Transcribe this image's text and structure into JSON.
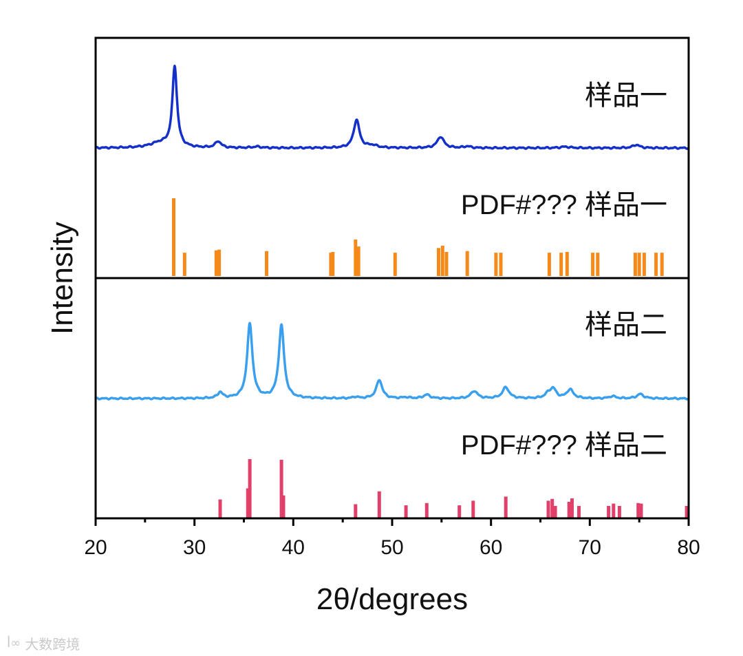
{
  "chart_data": {
    "type": "line",
    "xlabel": "2θ/degrees",
    "ylabel": "Intensity",
    "xlim": [
      20,
      80
    ],
    "x_ticks": [
      "20",
      "30",
      "40",
      "50",
      "60",
      "70",
      "80"
    ],
    "grid": false,
    "legend": "none",
    "panels": [
      {
        "name": "top",
        "traces": [
          {
            "kind": "line",
            "label": "样品一",
            "color": "#1530c8",
            "baseline": 0,
            "peaks": [
              {
                "x": 26.5,
                "h": 0.06,
                "w": 1.2
              },
              {
                "x": 28.0,
                "h": 1.0,
                "w": 0.28
              },
              {
                "x": 32.4,
                "h": 0.08,
                "w": 0.35
              },
              {
                "x": 36.3,
                "h": 0.015,
                "w": 0.5
              },
              {
                "x": 46.4,
                "h": 0.35,
                "w": 0.35
              },
              {
                "x": 48.0,
                "h": 0.03,
                "w": 0.6
              },
              {
                "x": 54.9,
                "h": 0.14,
                "w": 0.4
              },
              {
                "x": 57.6,
                "h": 0.02,
                "w": 0.4
              },
              {
                "x": 67.5,
                "h": 0.015,
                "w": 0.6
              },
              {
                "x": 74.7,
                "h": 0.04,
                "w": 0.4
              }
            ]
          },
          {
            "kind": "sticks",
            "label": "PDF#??? 样品一",
            "color": "#f58a1a",
            "sticks": [
              [
                27.9,
                1.0
              ],
              [
                29.0,
                0.3
              ],
              [
                32.2,
                0.33
              ],
              [
                32.5,
                0.34
              ],
              [
                37.3,
                0.32
              ],
              [
                43.8,
                0.3
              ],
              [
                44.0,
                0.31
              ],
              [
                46.3,
                0.47
              ],
              [
                46.6,
                0.38
              ],
              [
                50.3,
                0.3
              ],
              [
                54.7,
                0.36
              ],
              [
                55.1,
                0.39
              ],
              [
                55.5,
                0.31
              ],
              [
                57.6,
                0.32
              ],
              [
                60.5,
                0.3
              ],
              [
                61.0,
                0.3
              ],
              [
                65.9,
                0.3
              ],
              [
                67.1,
                0.3
              ],
              [
                67.7,
                0.31
              ],
              [
                70.3,
                0.3
              ],
              [
                70.8,
                0.3
              ],
              [
                74.6,
                0.3
              ],
              [
                75.0,
                0.3
              ],
              [
                75.5,
                0.3
              ],
              [
                76.7,
                0.3
              ],
              [
                77.3,
                0.3
              ]
            ]
          }
        ]
      },
      {
        "name": "bottom",
        "traces": [
          {
            "kind": "line",
            "label": "样品二",
            "color": "#3aa0ee",
            "baseline": 0,
            "peaks": [
              {
                "x": 32.6,
                "h": 0.08,
                "w": 0.3
              },
              {
                "x": 35.6,
                "h": 1.0,
                "w": 0.32
              },
              {
                "x": 38.8,
                "h": 0.98,
                "w": 0.32
              },
              {
                "x": 46.3,
                "h": 0.02,
                "w": 0.3
              },
              {
                "x": 48.7,
                "h": 0.25,
                "w": 0.35
              },
              {
                "x": 51.4,
                "h": 0.015,
                "w": 0.4
              },
              {
                "x": 53.5,
                "h": 0.05,
                "w": 0.4
              },
              {
                "x": 58.3,
                "h": 0.1,
                "w": 0.4
              },
              {
                "x": 61.5,
                "h": 0.15,
                "w": 0.4
              },
              {
                "x": 65.8,
                "h": 0.06,
                "w": 0.4
              },
              {
                "x": 66.3,
                "h": 0.12,
                "w": 0.35
              },
              {
                "x": 68.0,
                "h": 0.12,
                "w": 0.4
              },
              {
                "x": 72.3,
                "h": 0.03,
                "w": 0.4
              },
              {
                "x": 75.1,
                "h": 0.06,
                "w": 0.4
              }
            ]
          },
          {
            "kind": "sticks",
            "label": "PDF#??? 样品二",
            "color": "#e0406a",
            "sticks": [
              [
                32.6,
                0.31
              ],
              [
                35.4,
                0.5
              ],
              [
                35.6,
                1.0
              ],
              [
                38.8,
                0.99
              ],
              [
                39.0,
                0.38
              ],
              [
                46.3,
                0.23
              ],
              [
                48.7,
                0.45
              ],
              [
                51.4,
                0.21
              ],
              [
                53.5,
                0.25
              ],
              [
                56.8,
                0.21
              ],
              [
                58.2,
                0.29
              ],
              [
                61.5,
                0.36
              ],
              [
                65.8,
                0.29
              ],
              [
                66.2,
                0.32
              ],
              [
                66.5,
                0.2
              ],
              [
                67.9,
                0.27
              ],
              [
                68.2,
                0.33
              ],
              [
                68.9,
                0.2
              ],
              [
                71.9,
                0.2
              ],
              [
                72.4,
                0.24
              ],
              [
                73.0,
                0.2
              ],
              [
                74.9,
                0.25
              ],
              [
                75.2,
                0.24
              ],
              [
                79.8,
                0.2
              ]
            ]
          }
        ]
      }
    ]
  },
  "watermark": {
    "text": "大数跨境",
    "logo": "ꟾ∞"
  }
}
